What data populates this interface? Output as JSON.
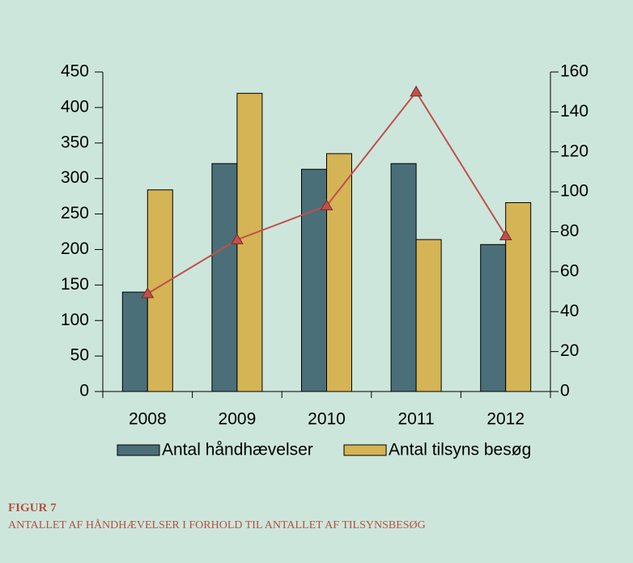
{
  "chart_data": {
    "type": "bar",
    "categories": [
      "2008",
      "2009",
      "2010",
      "2011",
      "2012"
    ],
    "series": [
      {
        "name": "Antal håndhævelser",
        "color": "#4a6f78",
        "values": [
          140,
          321,
          313,
          321,
          207
        ]
      },
      {
        "name": "Antal tilsyns besøg",
        "color": "#d4b455",
        "values": [
          284,
          420,
          335,
          214,
          266
        ]
      },
      {
        "type": "line",
        "axis": "y2",
        "color": "#c0504d",
        "values": [
          49,
          76,
          93,
          150,
          78
        ]
      }
    ],
    "ylim": [
      0,
      450
    ],
    "yticks": [
      0,
      50,
      100,
      150,
      200,
      250,
      300,
      350,
      400,
      450
    ],
    "y2lim": [
      0,
      160
    ],
    "y2ticks": [
      0,
      20,
      40,
      60,
      80,
      100,
      120,
      140,
      160
    ],
    "legend": "bottom"
  },
  "figure": {
    "label": "FIGUR 7",
    "caption": "ANTALLET AF HÅNDHÆVELSER I FORHOLD TIL ANTALLET AF TILSYNSBESØG"
  }
}
